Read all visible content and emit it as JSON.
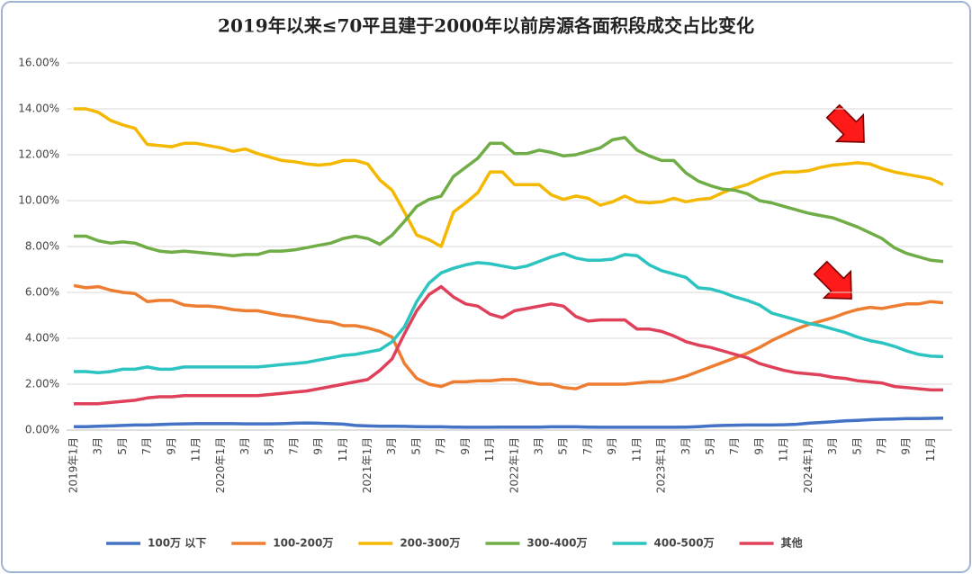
{
  "chart_data": {
    "type": "line",
    "title": "2019年以来≤70平且建于2000年以前房源各面积段成交占比变化",
    "categories": [
      "2019年1月",
      null,
      "3月",
      null,
      "5月",
      null,
      "7月",
      null,
      "9月",
      null,
      "11月",
      null,
      "2020年1月",
      null,
      "3月",
      null,
      "5月",
      null,
      "7月",
      null,
      "9月",
      null,
      "11月",
      null,
      "2021年1月",
      null,
      "3月",
      null,
      "5月",
      null,
      "7月",
      null,
      "9月",
      null,
      "11月",
      null,
      "2022年1月",
      null,
      "3月",
      null,
      "5月",
      null,
      "7月",
      null,
      "9月",
      null,
      "11月",
      null,
      "2023年1月",
      null,
      "3月",
      null,
      "5月",
      null,
      "7月",
      null,
      "9月",
      null,
      "11月",
      null,
      "2024年1月",
      null,
      "3月",
      null,
      "5月",
      null,
      "7月",
      null,
      "9月",
      null,
      "11月",
      null
    ],
    "series": [
      {
        "name": "100万 以下",
        "color": "#4472c4",
        "values": [
          0.15,
          0.15,
          0.17,
          0.18,
          0.2,
          0.22,
          0.22,
          0.24,
          0.26,
          0.27,
          0.28,
          0.28,
          0.28,
          0.28,
          0.27,
          0.27,
          0.27,
          0.28,
          0.3,
          0.31,
          0.3,
          0.28,
          0.26,
          0.2,
          0.18,
          0.17,
          0.17,
          0.16,
          0.15,
          0.14,
          0.14,
          0.13,
          0.12,
          0.12,
          0.12,
          0.13,
          0.13,
          0.13,
          0.13,
          0.14,
          0.14,
          0.14,
          0.13,
          0.12,
          0.12,
          0.12,
          0.12,
          0.12,
          0.12,
          0.12,
          0.13,
          0.15,
          0.18,
          0.2,
          0.21,
          0.22,
          0.22,
          0.22,
          0.23,
          0.25,
          0.3,
          0.33,
          0.36,
          0.4,
          0.42,
          0.45,
          0.47,
          0.48,
          0.5,
          0.5,
          0.51,
          0.52
        ]
      },
      {
        "name": "100-200万",
        "color": "#ed7d31",
        "values": [
          6.3,
          6.2,
          6.25,
          6.1,
          6.0,
          5.95,
          5.6,
          5.65,
          5.65,
          5.45,
          5.4,
          5.4,
          5.35,
          5.25,
          5.2,
          5.2,
          5.1,
          5.0,
          4.95,
          4.85,
          4.75,
          4.7,
          4.55,
          4.55,
          4.45,
          4.3,
          4.05,
          2.9,
          2.25,
          2.0,
          1.9,
          2.1,
          2.1,
          2.15,
          2.15,
          2.2,
          2.2,
          2.1,
          2.0,
          2.0,
          1.85,
          1.8,
          2.0,
          2.0,
          2.0,
          2.0,
          2.05,
          2.1,
          2.1,
          2.2,
          2.35,
          2.55,
          2.75,
          2.95,
          3.15,
          3.35,
          3.6,
          3.9,
          4.15,
          4.4,
          4.6,
          4.75,
          4.9,
          5.1,
          5.25,
          5.35,
          5.3,
          5.4,
          5.5,
          5.5,
          5.6,
          5.55
        ]
      },
      {
        "name": "200-300万",
        "color": "#f5b800",
        "values": [
          14.0,
          14.0,
          13.85,
          13.5,
          13.3,
          13.15,
          12.45,
          12.4,
          12.35,
          12.5,
          12.5,
          12.4,
          12.3,
          12.15,
          12.25,
          12.05,
          11.9,
          11.75,
          11.7,
          11.6,
          11.55,
          11.6,
          11.75,
          11.75,
          11.6,
          10.9,
          10.45,
          9.5,
          8.5,
          8.3,
          8.0,
          9.5,
          9.9,
          10.35,
          11.25,
          11.25,
          10.7,
          10.7,
          10.7,
          10.25,
          10.05,
          10.2,
          10.1,
          9.8,
          9.95,
          10.2,
          9.95,
          9.9,
          9.95,
          10.1,
          9.95,
          10.05,
          10.1,
          10.35,
          10.55,
          10.7,
          10.95,
          11.15,
          11.25,
          11.25,
          11.3,
          11.45,
          11.55,
          11.6,
          11.65,
          11.6,
          11.4,
          11.25,
          11.15,
          11.05,
          10.95,
          10.7
        ]
      },
      {
        "name": "300-400万",
        "color": "#70ad47",
        "values": [
          8.45,
          8.45,
          8.25,
          8.15,
          8.2,
          8.15,
          7.95,
          7.8,
          7.75,
          7.8,
          7.75,
          7.7,
          7.65,
          7.6,
          7.65,
          7.65,
          7.8,
          7.8,
          7.85,
          7.95,
          8.05,
          8.15,
          8.35,
          8.45,
          8.35,
          8.1,
          8.5,
          9.1,
          9.75,
          10.05,
          10.2,
          11.05,
          11.45,
          11.85,
          12.5,
          12.5,
          12.05,
          12.05,
          12.2,
          12.1,
          11.95,
          12.0,
          12.15,
          12.3,
          12.65,
          12.75,
          12.2,
          11.95,
          11.75,
          11.75,
          11.2,
          10.85,
          10.65,
          10.5,
          10.45,
          10.3,
          10.0,
          9.9,
          9.75,
          9.6,
          9.45,
          9.35,
          9.25,
          9.05,
          8.85,
          8.6,
          8.35,
          7.95,
          7.7,
          7.55,
          7.4,
          7.35
        ]
      },
      {
        "name": "400-500万",
        "color": "#2cc4c0",
        "values": [
          2.55,
          2.55,
          2.5,
          2.55,
          2.65,
          2.65,
          2.75,
          2.65,
          2.65,
          2.75,
          2.75,
          2.75,
          2.75,
          2.75,
          2.75,
          2.75,
          2.8,
          2.85,
          2.9,
          2.95,
          3.05,
          3.15,
          3.25,
          3.3,
          3.4,
          3.5,
          3.85,
          4.5,
          5.6,
          6.4,
          6.85,
          7.05,
          7.2,
          7.3,
          7.25,
          7.15,
          7.05,
          7.15,
          7.35,
          7.55,
          7.7,
          7.5,
          7.4,
          7.4,
          7.45,
          7.65,
          7.6,
          7.2,
          6.95,
          6.8,
          6.65,
          6.2,
          6.15,
          6.0,
          5.8,
          5.65,
          5.45,
          5.1,
          4.95,
          4.8,
          4.65,
          4.55,
          4.4,
          4.25,
          4.05,
          3.9,
          3.8,
          3.65,
          3.45,
          3.3,
          3.22,
          3.2
        ]
      },
      {
        "name": "其他",
        "color": "#e0415a",
        "values": [
          1.15,
          1.15,
          1.15,
          1.2,
          1.25,
          1.3,
          1.4,
          1.45,
          1.45,
          1.5,
          1.5,
          1.5,
          1.5,
          1.5,
          1.5,
          1.5,
          1.55,
          1.6,
          1.65,
          1.7,
          1.8,
          1.9,
          2.0,
          2.1,
          2.2,
          2.6,
          3.1,
          4.2,
          5.2,
          5.9,
          6.25,
          5.8,
          5.5,
          5.4,
          5.05,
          4.9,
          5.2,
          5.3,
          5.4,
          5.5,
          5.4,
          4.95,
          4.75,
          4.8,
          4.8,
          4.8,
          4.4,
          4.4,
          4.3,
          4.1,
          3.85,
          3.7,
          3.6,
          3.45,
          3.3,
          3.15,
          2.9,
          2.75,
          2.6,
          2.5,
          2.45,
          2.4,
          2.3,
          2.25,
          2.15,
          2.1,
          2.05,
          1.9,
          1.85,
          1.8,
          1.75,
          1.75
        ]
      }
    ],
    "ylim": [
      0,
      16
    ],
    "yticks": [
      {
        "value": 0,
        "label": "0.00%"
      },
      {
        "value": 2,
        "label": "2.00%"
      },
      {
        "value": 4,
        "label": "4.00%"
      },
      {
        "value": 6,
        "label": "6.00%"
      },
      {
        "value": 8,
        "label": "8.00%"
      },
      {
        "value": 10,
        "label": "10.00%"
      },
      {
        "value": 12,
        "label": "12.00%"
      },
      {
        "value": 14,
        "label": "14.00%"
      },
      {
        "value": 16,
        "label": "16.00%"
      }
    ],
    "grid": true,
    "legend": "bottom"
  }
}
